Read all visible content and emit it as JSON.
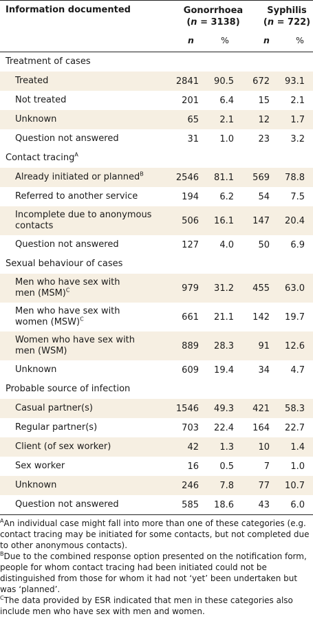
{
  "header": {
    "label": "Information documented",
    "gonorrhoea_name": "Gonorrhoea",
    "gonorrhoea_n": "(n = 3138)",
    "syphilis_name": "Syphilis",
    "syphilis_n": "(n = 722)",
    "col_n": "n",
    "col_pct": "%"
  },
  "sections": [
    {
      "title": "Treatment of cases",
      "rows": [
        {
          "label": "Treated",
          "g_n": "2841",
          "g_pct": "90.5",
          "s_n": "672",
          "s_pct": "93.1"
        },
        {
          "label": "Not treated",
          "g_n": "201",
          "g_pct": "6.4",
          "s_n": "15",
          "s_pct": "2.1"
        },
        {
          "label": "Unknown",
          "g_n": "65",
          "g_pct": "2.1",
          "s_n": "12",
          "s_pct": "1.7"
        },
        {
          "label": "Question not answered",
          "g_n": "31",
          "g_pct": "1.0",
          "s_n": "23",
          "s_pct": "3.2"
        }
      ]
    },
    {
      "title": "Contact tracing",
      "title_sup": "A",
      "rows": [
        {
          "label": "Already initiated or planned",
          "sup": "B",
          "g_n": "2546",
          "g_pct": "81.1",
          "s_n": "569",
          "s_pct": "78.8"
        },
        {
          "label": "Referred to another service",
          "g_n": "194",
          "g_pct": "6.2",
          "s_n": "54",
          "s_pct": "7.5"
        },
        {
          "label_line1": "Incomplete due to anonymous",
          "label_line2": "contacts",
          "g_n": "506",
          "g_pct": "16.1",
          "s_n": "147",
          "s_pct": "20.4"
        },
        {
          "label": "Question not answered",
          "g_n": "127",
          "g_pct": "4.0",
          "s_n": "50",
          "s_pct": "6.9"
        }
      ]
    },
    {
      "title": "Sexual behaviour of cases",
      "rows": [
        {
          "label_line1": "Men who have sex with",
          "label_line2": "men (MSM)",
          "sup": "C",
          "g_n": "979",
          "g_pct": "31.2",
          "s_n": "455",
          "s_pct": "63.0"
        },
        {
          "label_line1": "Men who have sex with",
          "label_line2": "women (MSW)",
          "sup": "C",
          "g_n": "661",
          "g_pct": "21.1",
          "s_n": "142",
          "s_pct": "19.7"
        },
        {
          "label_line1": "Women who have sex with",
          "label_line2": "men (WSM)",
          "g_n": "889",
          "g_pct": "28.3",
          "s_n": "91",
          "s_pct": "12.6"
        },
        {
          "label": "Unknown",
          "g_n": "609",
          "g_pct": "19.4",
          "s_n": "34",
          "s_pct": "4.7"
        }
      ]
    },
    {
      "title": "Probable source of infection",
      "rows": [
        {
          "label": "Casual partner(s)",
          "g_n": "1546",
          "g_pct": "49.3",
          "s_n": "421",
          "s_pct": "58.3"
        },
        {
          "label": "Regular partner(s)",
          "g_n": "703",
          "g_pct": "22.4",
          "s_n": "164",
          "s_pct": "22.7"
        },
        {
          "label": "Client (of sex worker)",
          "g_n": "42",
          "g_pct": "1.3",
          "s_n": "10",
          "s_pct": "1.4"
        },
        {
          "label": "Sex worker",
          "g_n": "16",
          "g_pct": "0.5",
          "s_n": "7",
          "s_pct": "1.0"
        },
        {
          "label": "Unknown",
          "g_n": "246",
          "g_pct": "7.8",
          "s_n": "77",
          "s_pct": "10.7"
        },
        {
          "label": "Question not answered",
          "g_n": "585",
          "g_pct": "18.6",
          "s_n": "43",
          "s_pct": "6.0"
        }
      ]
    }
  ],
  "footnotes": {
    "a_mark": "A",
    "a_text": "An individual case might fall into more than one of these categories (e.g. contact tracing may be initiated for some contacts, but not completed due to other anonymous contacts).",
    "b_mark": "B",
    "b_text": "Due to the combined response option presented on the notification form, people for whom contact tracing had been initiated could not be distinguished from those for whom it had not ‘yet’ been undertaken but was ‘planned’.",
    "c_mark": "C",
    "c_text": "The data provided by ESR indicated that men in these categories also include men who have sex with men and women."
  }
}
